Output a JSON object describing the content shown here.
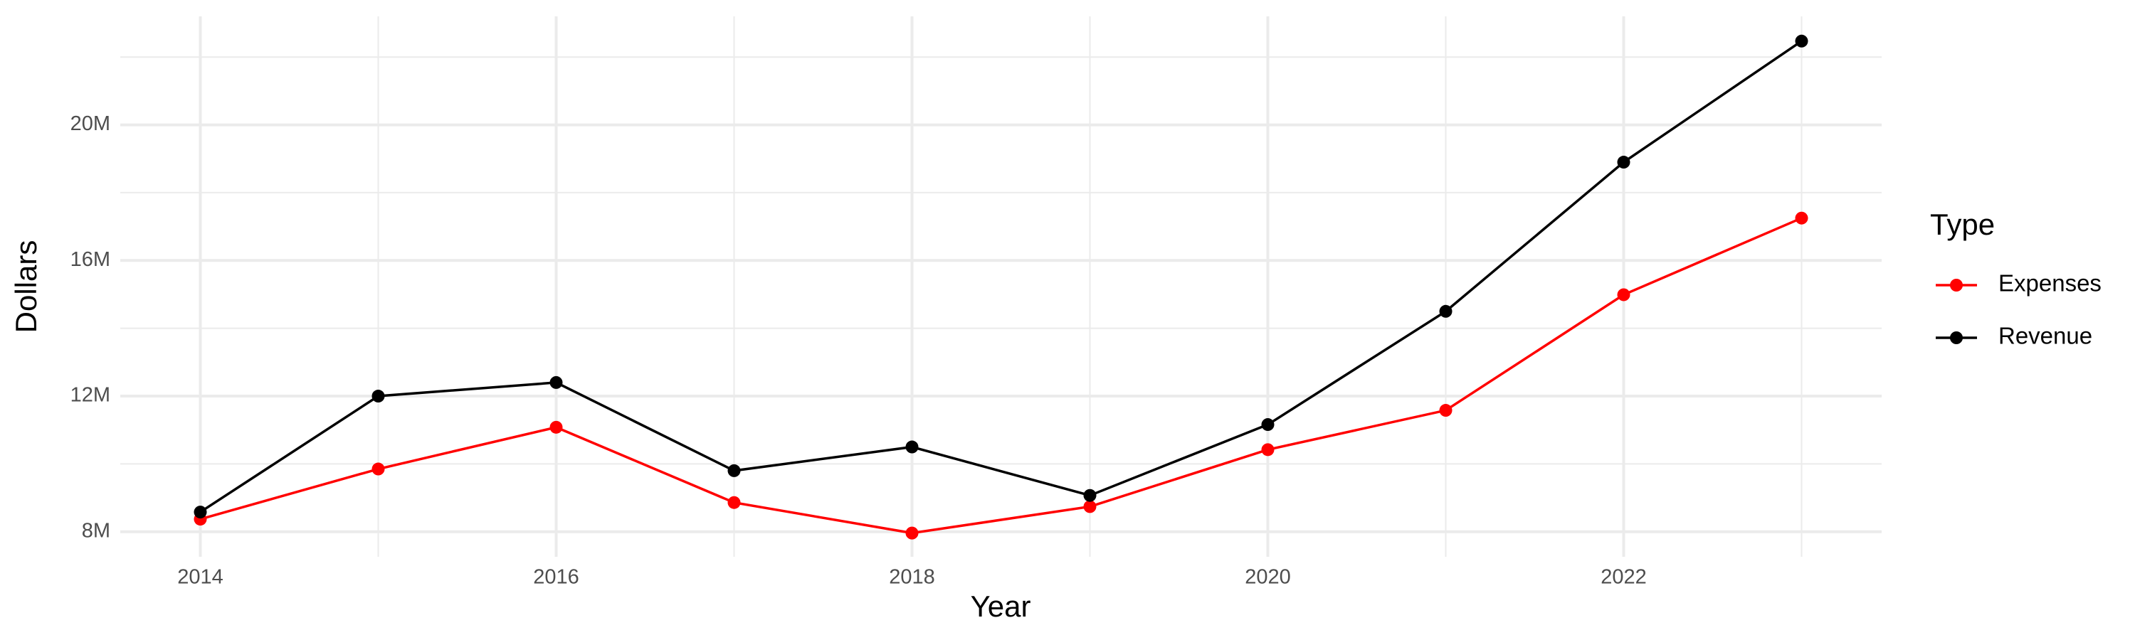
{
  "chart_data": {
    "type": "line",
    "x_label": "Year",
    "y_label": "Dollars",
    "legend_title": "Type",
    "x": [
      2014,
      2015,
      2016,
      2017,
      2018,
      2019,
      2020,
      2021,
      2022,
      2023
    ],
    "series": [
      {
        "name": "Expenses",
        "color": "#ff0000",
        "values": [
          8370000,
          9850000,
          11080000,
          8860000,
          7960000,
          8740000,
          10420000,
          11580000,
          14990000,
          17250000
        ]
      },
      {
        "name": "Revenue",
        "color": "#000000",
        "values": [
          8580000,
          12000000,
          12400000,
          9800000,
          10500000,
          9070000,
          11160000,
          14500000,
          18900000,
          22470000
        ]
      }
    ],
    "xlim": [
      2013.55,
      2023.45
    ],
    "xticks": [
      2014,
      2016,
      2018,
      2020,
      2022
    ],
    "ylim": [
      7260000,
      23200000
    ],
    "yticks": [
      {
        "value": 8000000,
        "label": "8M"
      },
      {
        "value": 12000000,
        "label": "12M"
      },
      {
        "value": 16000000,
        "label": "16M"
      },
      {
        "value": 20000000,
        "label": "20M"
      }
    ],
    "grid": true,
    "legend_position": "right"
  }
}
